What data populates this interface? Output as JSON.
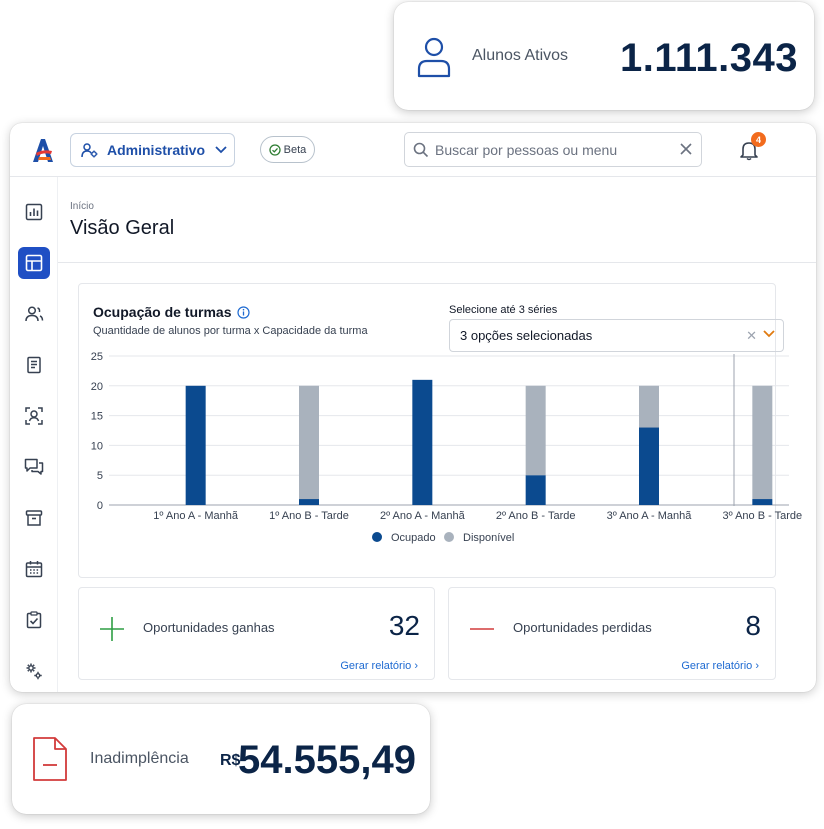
{
  "header_card": {
    "label": "Alunos Ativos",
    "value": "1.111.343"
  },
  "footer_card": {
    "label": "Inadimplência",
    "currency": "R$",
    "value": "54.555,49"
  },
  "topbar": {
    "profile": "Administrativo",
    "badge": "Beta",
    "search_placeholder": "Buscar por pessoas ou menu",
    "notifications": "4"
  },
  "page": {
    "breadcrumb": "Início",
    "title": "Visão Geral"
  },
  "chart_panel": {
    "title": "Ocupação de turmas",
    "subtitle": "Quantidade de alunos por turma x Capacidade da turma",
    "select_label": "Selecione até 3 séries",
    "select_value": "3 opções selecionadas"
  },
  "chart_data": {
    "type": "bar",
    "stacked": true,
    "title": "Ocupação de turmas",
    "categories": [
      "1º Ano A - Manhã",
      "1º Ano B - Tarde",
      "2º Ano A - Manhã",
      "2º Ano B - Tarde",
      "3º Ano A - Manhã",
      "3º Ano B - Tarde"
    ],
    "series": [
      {
        "name": "Ocupado",
        "color": "#0b4a8f",
        "values": [
          20,
          1,
          21,
          5,
          13,
          1
        ]
      },
      {
        "name": "Disponível",
        "color": "#a9b2bd",
        "values": [
          0,
          19,
          0,
          15,
          7,
          19
        ]
      }
    ],
    "ylim": [
      0,
      25
    ],
    "yticks": [
      0,
      5,
      10,
      15,
      20,
      25
    ],
    "legend": "bottom-center"
  },
  "opportunities": {
    "won": {
      "label": "Oportunidades ganhas",
      "value": "32",
      "link": "Gerar relatório ›",
      "color": "#2e9e44"
    },
    "lost": {
      "label": "Oportunidades perdidas",
      "value": "8",
      "link": "Gerar relatório ›",
      "color": "#d23b3b"
    }
  }
}
